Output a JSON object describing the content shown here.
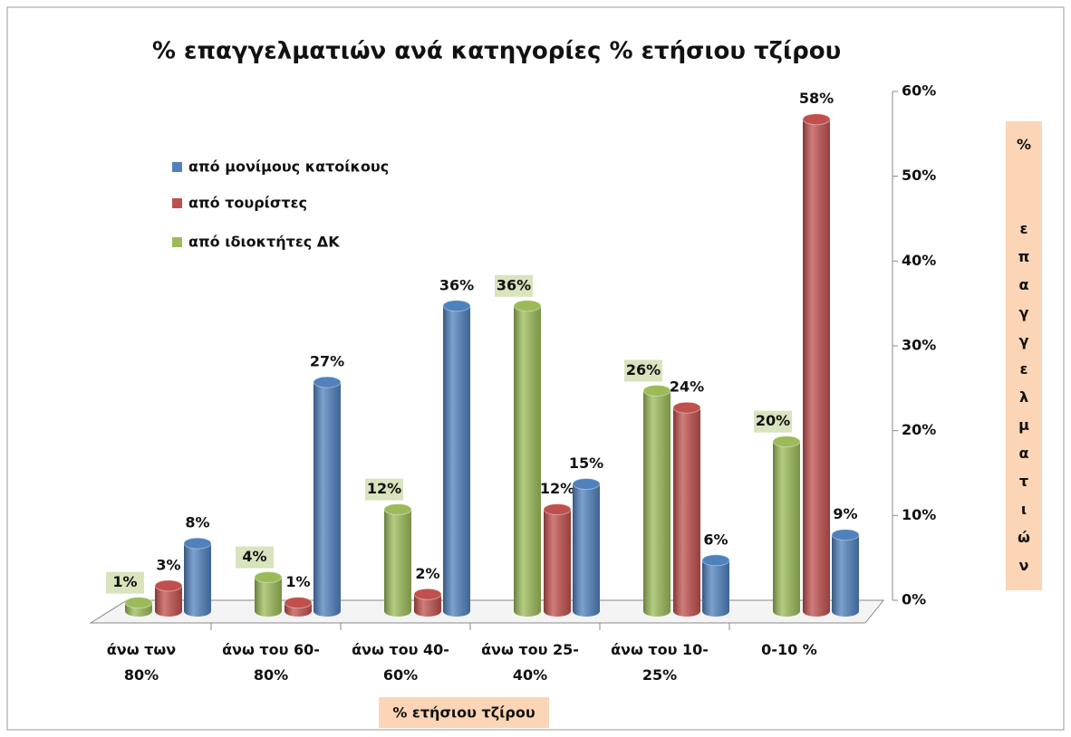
{
  "chart_data": {
    "type": "bar",
    "title": "% επαγγελματιών ανά κατηγορίες % ετήσιου τζίρου",
    "x_label": "% ετήσιου τζίρου",
    "y_label": "% επαγγελματιών",
    "categories": [
      "άνω των\n80%",
      "άνω του 60-\n80%",
      "άνω του 40-\n60%",
      "άνω του 25-\n40%",
      "άνω του 10-\n25%",
      "0-10 %"
    ],
    "series": [
      {
        "name": "από μονίμους κατοίκους",
        "color": "#4f81bd",
        "values": [
          8,
          27,
          36,
          15,
          6,
          9
        ],
        "value_labels": [
          "8%",
          "27%",
          "36%",
          "15%",
          "6%",
          "9%"
        ]
      },
      {
        "name": "από τουρίστες",
        "color": "#c0504d",
        "values": [
          3,
          1,
          2,
          12,
          24,
          58
        ],
        "value_labels": [
          "3%",
          "1%",
          "2%",
          "12%",
          "24%",
          "58%"
        ]
      },
      {
        "name": "από ιδιοκτήτες ΔΚ",
        "color": "#9bbb59",
        "values": [
          1,
          4,
          12,
          36,
          26,
          20
        ],
        "value_labels": [
          "1%",
          "4%",
          "12%",
          "36%",
          "26%",
          "20%"
        ]
      }
    ],
    "ylim": [
      0,
      60
    ],
    "yticks": [
      {
        "value": 0,
        "label": "0%"
      },
      {
        "value": 10,
        "label": "10%"
      },
      {
        "value": 20,
        "label": "20%"
      },
      {
        "value": 30,
        "label": "30%"
      },
      {
        "value": 40,
        "label": "40%"
      },
      {
        "value": 50,
        "label": "50%"
      },
      {
        "value": 60,
        "label": "60%"
      }
    ],
    "legend": "upper left"
  }
}
